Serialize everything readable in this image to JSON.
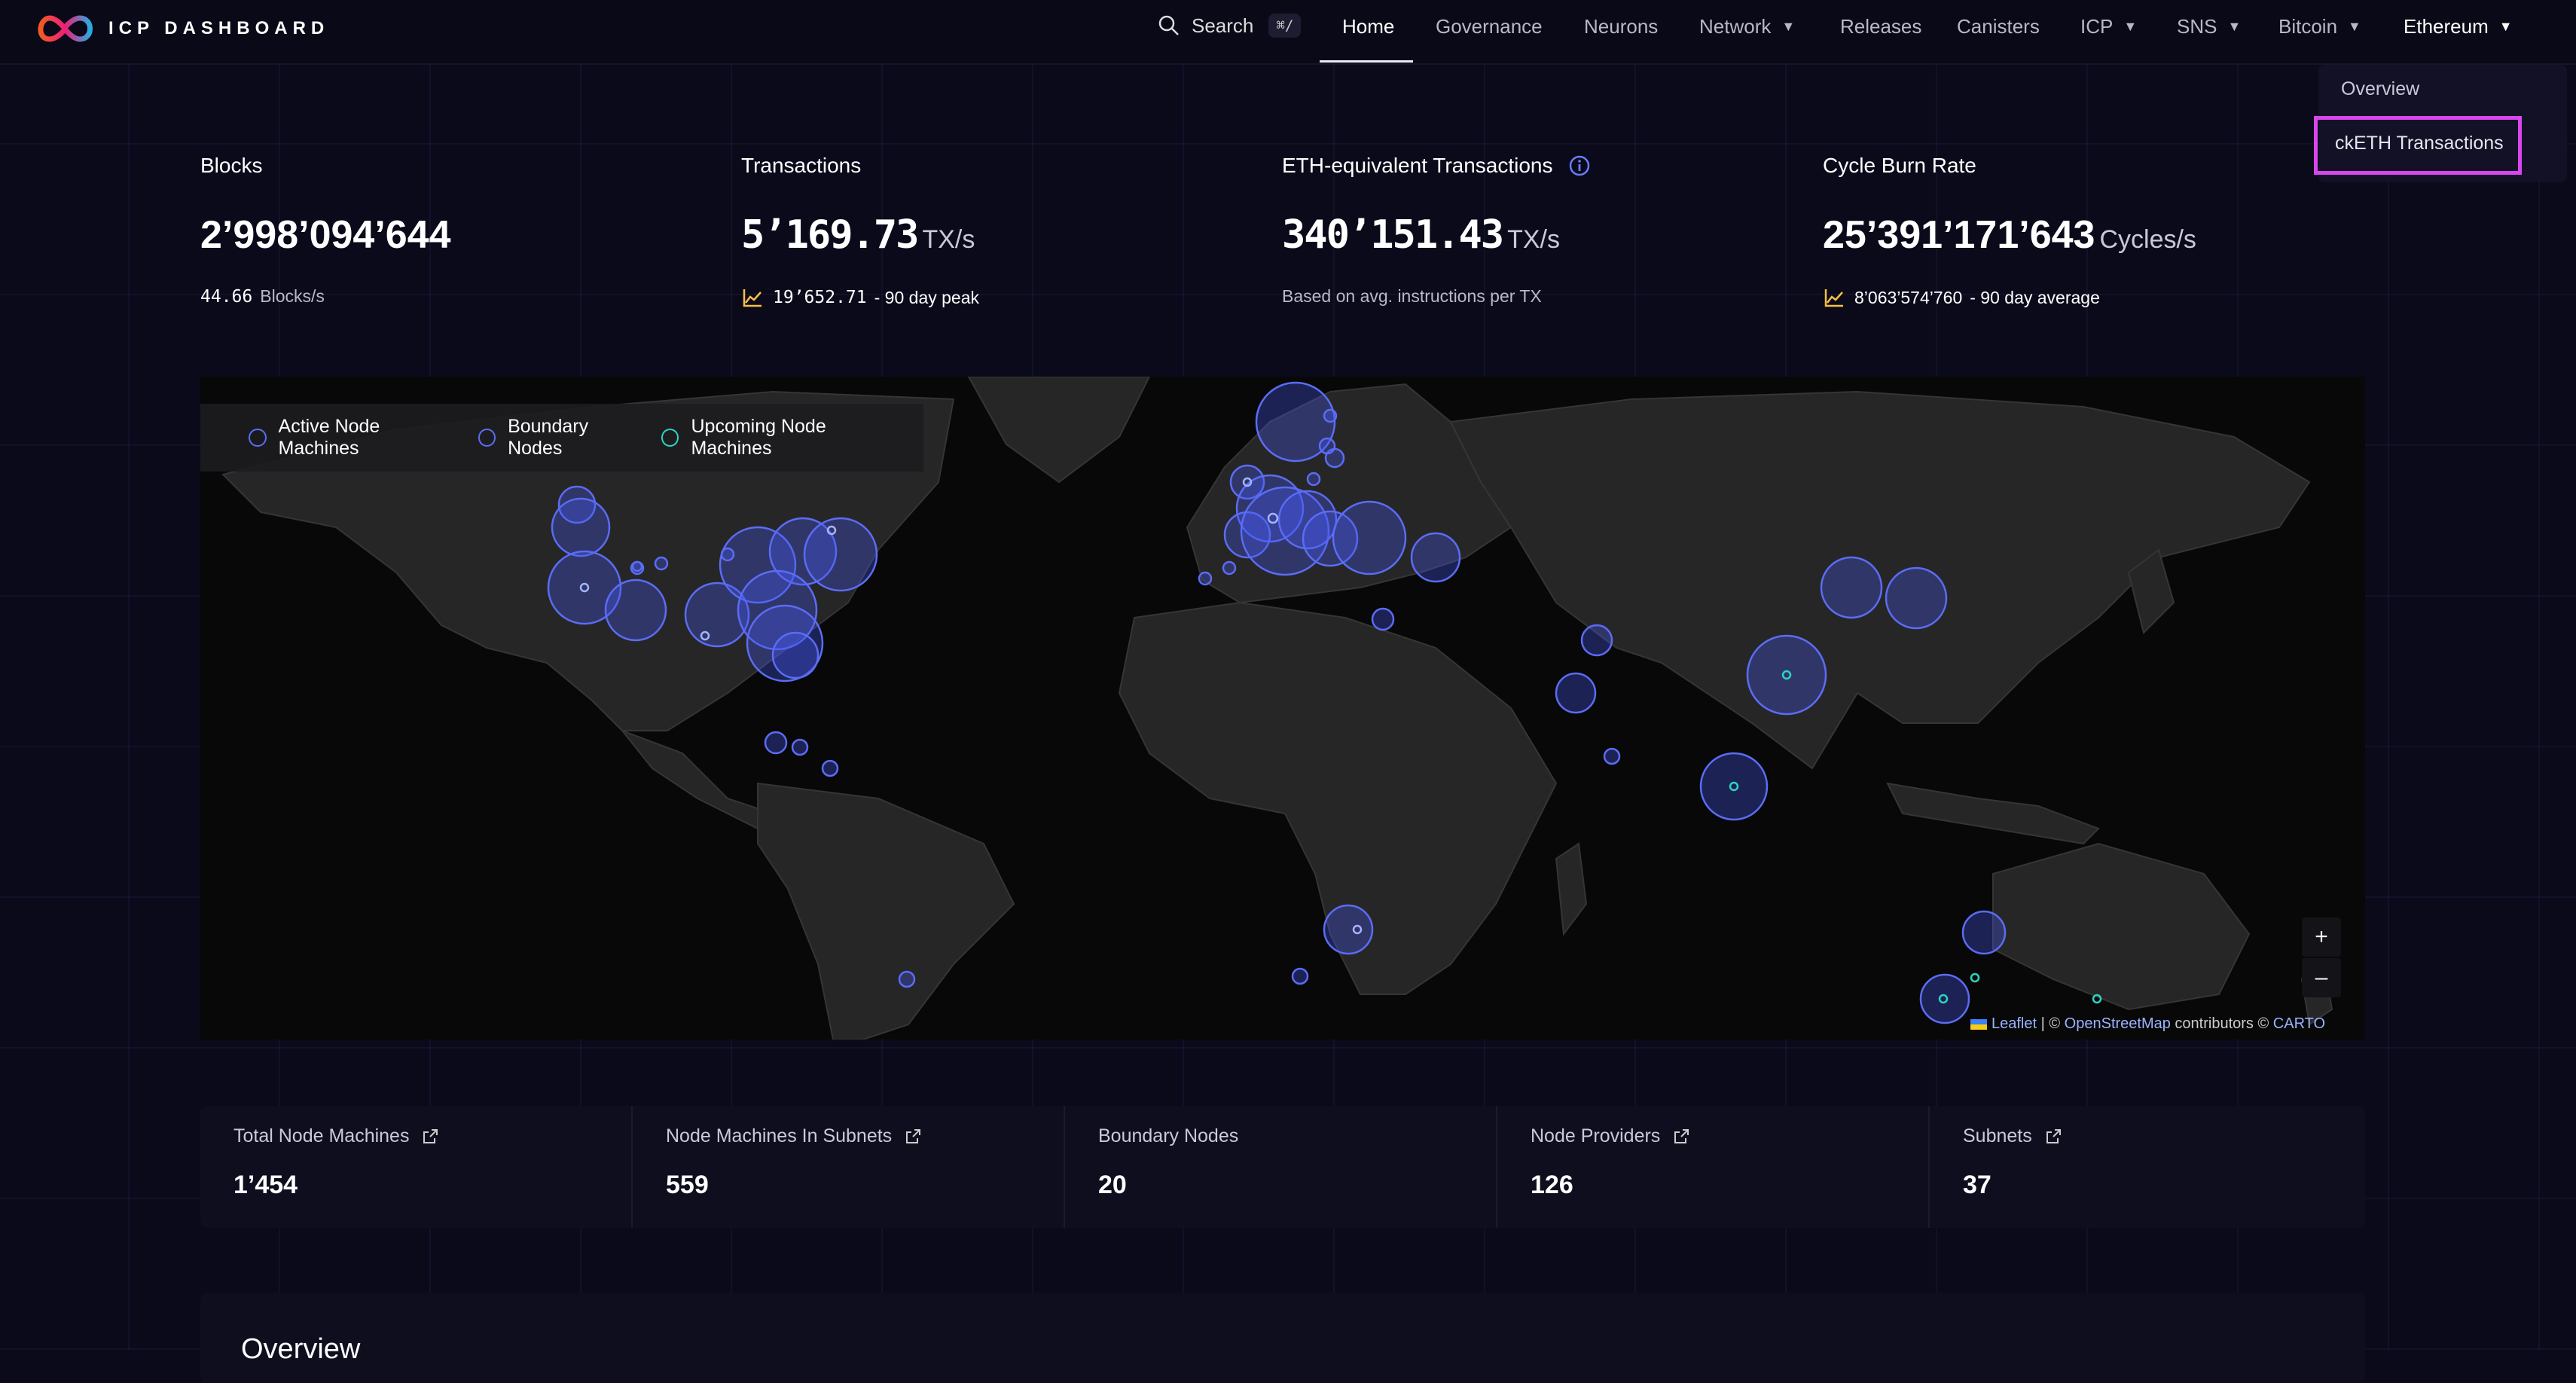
{
  "header": {
    "brand": "ICP DASHBOARD",
    "search_label": "Search",
    "search_shortcut": "⌘/",
    "nav": [
      {
        "label": "Home",
        "active": true
      },
      {
        "label": "Governance"
      },
      {
        "label": "Neurons"
      },
      {
        "label": "Network",
        "has_menu": true
      },
      {
        "label": "Releases"
      },
      {
        "label": "Canisters"
      },
      {
        "label": "ICP",
        "has_menu": true
      },
      {
        "label": "SNS",
        "has_menu": true
      },
      {
        "label": "Bitcoin",
        "has_menu": true
      },
      {
        "label": "Ethereum",
        "has_menu": true,
        "open": true
      }
    ],
    "dropdown": {
      "items": [
        "Overview",
        "ckETH Transactions"
      ],
      "highlighted_item": "ckETH Transactions",
      "highlight_color": "#d946ef"
    }
  },
  "stats": {
    "blocks": {
      "title": "Blocks",
      "value": "2’998’094’644",
      "rate_value": "44.66",
      "rate_unit": "Blocks/s"
    },
    "transactions": {
      "title": "Transactions",
      "value": "5’169.73",
      "unit": "TX/s",
      "peak_value": "19’652.71",
      "peak_label": "- 90 day peak"
    },
    "eth_equivalent": {
      "title": "ETH-equivalent Transactions",
      "value": "340’151.43",
      "unit": "TX/s",
      "note": "Based on avg. instructions per TX"
    },
    "cycle_burn": {
      "title": "Cycle Burn Rate",
      "value": "25’391’171’643",
      "unit": "Cycles/s",
      "avg_value": "8’063’574’760",
      "avg_label": "- 90 day average"
    }
  },
  "map": {
    "legend": [
      "Active Node Machines",
      "Boundary Nodes",
      "Upcoming Node Machines"
    ],
    "zoom_in": "+",
    "zoom_out": "–",
    "attribution": {
      "leaflet": "Leaflet",
      "sep": " | © ",
      "osm": "OpenStreetMap",
      "contributors": " contributors © ",
      "carto": "CARTO"
    },
    "colors": {
      "active": "#5b6cf5",
      "upcoming": "#2dd4bf"
    }
  },
  "bottom_stats": [
    {
      "label": "Total Node Machines",
      "value": "1’454",
      "external": true
    },
    {
      "label": "Node Machines In Subnets",
      "value": "559",
      "external": true
    },
    {
      "label": "Boundary Nodes",
      "value": "20",
      "external": false
    },
    {
      "label": "Node Providers",
      "value": "126",
      "external": true
    },
    {
      "label": "Subnets",
      "value": "37",
      "external": true
    }
  ],
  "overview": {
    "heading": "Overview"
  }
}
